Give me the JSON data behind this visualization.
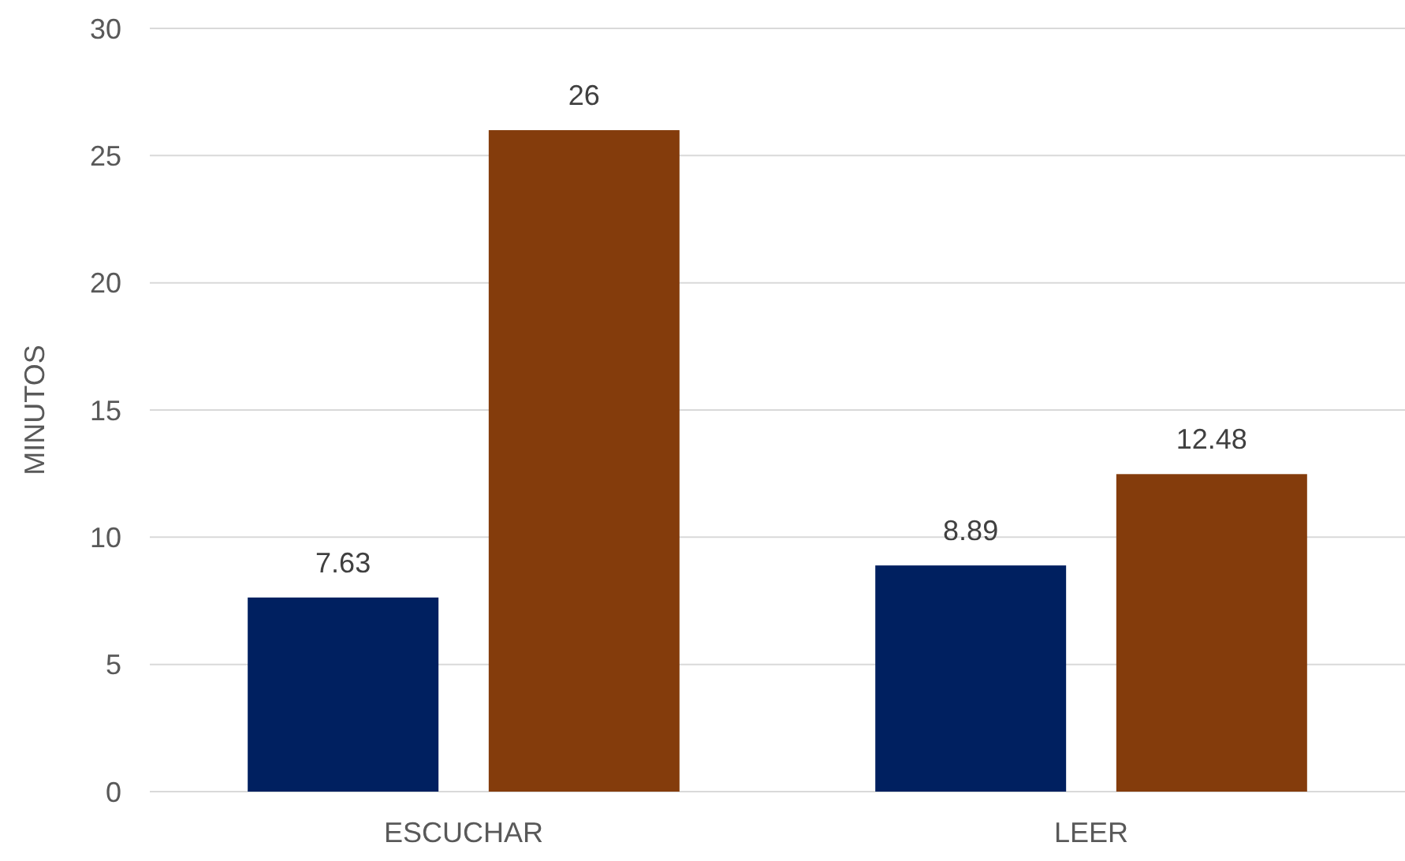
{
  "chart_data": {
    "type": "bar",
    "ylabel": "MINUTOS",
    "categories": [
      "ESCUCHAR",
      "LEER"
    ],
    "series": [
      {
        "color": "#002060",
        "values": [
          7.63,
          8.89
        ]
      },
      {
        "color": "#843c0c",
        "values": [
          26,
          12.48
        ]
      }
    ],
    "ylim": [
      0,
      30
    ],
    "yticks": [
      0,
      5,
      10,
      15,
      20,
      25,
      30
    ],
    "grid": "y",
    "data_labels": true
  }
}
